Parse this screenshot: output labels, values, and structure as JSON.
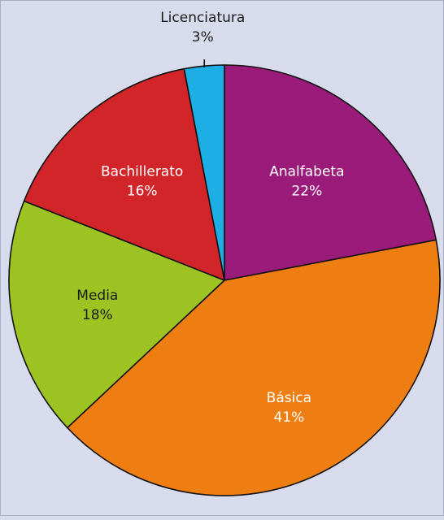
{
  "chart_data": {
    "type": "pie",
    "title": "",
    "start": "12 o'clock",
    "direction": "clockwise",
    "legend": "none",
    "slices": [
      {
        "label": "Analfabeta",
        "value": 22,
        "value_label": "22%",
        "color": "#9b1b7b",
        "text_color": "#ffffff"
      },
      {
        "label": "Básica",
        "value": 41,
        "value_label": "41%",
        "color": "#ef7e12",
        "text_color": "#ffffff"
      },
      {
        "label": "Media",
        "value": 18,
        "value_label": "18%",
        "color": "#9cc322",
        "text_color": "#1a1a1a"
      },
      {
        "label": "Bachillerato",
        "value": 16,
        "value_label": "16%",
        "color": "#d1252a",
        "text_color": "#ffffff"
      },
      {
        "label": "Licenciatura",
        "value": 3,
        "value_label": "3%",
        "color": "#1eaee6",
        "text_color": "#1a1a1a"
      }
    ]
  }
}
